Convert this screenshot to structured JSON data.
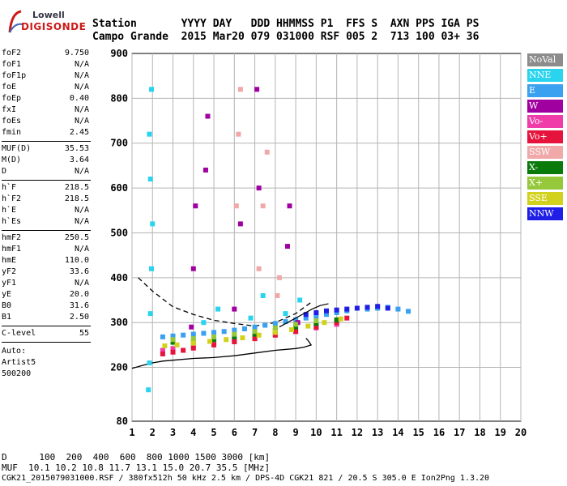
{
  "logo": {
    "line1": "Lowell",
    "line2": "DIGISONDE"
  },
  "header": {
    "row1": "Station       YYYY DAY   DDD HHMMSS P1  FFS S  AXN PPS IGA PS",
    "row2": "Campo Grande  2015 Mar20 079 031000 RSF 005 2  713 100 03+ 36"
  },
  "params": [
    {
      "key": "foF2",
      "value": "9.750"
    },
    {
      "key": "foF1",
      "value": "N/A"
    },
    {
      "key": "foF1p",
      "value": "N/A"
    },
    {
      "key": "foE",
      "value": "N/A"
    },
    {
      "key": "foEp",
      "value": "0.40"
    },
    {
      "key": "fxI",
      "value": "N/A"
    },
    {
      "key": "foEs",
      "value": "N/A"
    },
    {
      "key": "fmin",
      "value": "2.45"
    },
    {
      "key": "MUF(D)",
      "value": "35.53"
    },
    {
      "key": "M(D)",
      "value": "3.64"
    },
    {
      "key": "D",
      "value": "N/A"
    },
    {
      "key": "h`F",
      "value": "218.5"
    },
    {
      "key": "h`F2",
      "value": "218.5"
    },
    {
      "key": "h`E",
      "value": "N/A"
    },
    {
      "key": "h`Es",
      "value": "N/A"
    },
    {
      "key": "hmF2",
      "value": "250.5"
    },
    {
      "key": "hmF1",
      "value": "N/A"
    },
    {
      "key": "hmE",
      "value": "110.0"
    },
    {
      "key": "yF2",
      "value": "33.6"
    },
    {
      "key": "yF1",
      "value": "N/A"
    },
    {
      "key": "yE",
      "value": "20.0"
    },
    {
      "key": "B0",
      "value": "31.6"
    },
    {
      "key": "B1",
      "value": "2.50"
    },
    {
      "key": "C-level",
      "value": "55"
    }
  ],
  "auto": {
    "line1": "Auto:",
    "line2": "Artist5",
    "line3": "500200"
  },
  "footer": {
    "d_row": "D      100  200  400  600  800 1000 1500 3000 [km]",
    "muf_row": "MUF  10.1 10.2 10.8 11.7 13.1 15.0 20.7 35.5 [MHz]",
    "file_row": "CGK21_2015079031000.RSF / 380fx512h 50 kHz 2.5 km / DPS-4D CGK21 821 / 20.5 S 305.0 E Ion2Png 1.3.20"
  },
  "legend": [
    {
      "label": "NoVal",
      "color": "#8c8c8c"
    },
    {
      "label": "NNE",
      "color": "#2ad4ee"
    },
    {
      "label": "E",
      "color": "#3aa0f0"
    },
    {
      "label": "W",
      "color": "#a000a0"
    },
    {
      "label": "Vo-",
      "color": "#f03ca8"
    },
    {
      "label": "Vo+",
      "color": "#e6143c"
    },
    {
      "label": "SSW",
      "color": "#f0a8a8"
    },
    {
      "label": "X-",
      "color": "#0a7a0a"
    },
    {
      "label": "X+",
      "color": "#96c83c"
    },
    {
      "label": "SSE",
      "color": "#d2d21e"
    },
    {
      "label": "NNW",
      "color": "#1e1ee6"
    }
  ],
  "chart_data": {
    "type": "scatter",
    "title": "",
    "xlabel": "",
    "ylabel": "",
    "xlim": [
      1,
      20
    ],
    "ylim": [
      80,
      900
    ],
    "x_ticks": [
      1,
      2,
      3,
      4,
      5,
      6,
      7,
      8,
      9,
      10,
      11,
      12,
      13,
      14,
      15,
      16,
      17,
      18,
      19,
      20
    ],
    "y_ticks": [
      80,
      200,
      300,
      400,
      500,
      600,
      700,
      800,
      900
    ],
    "grid": true,
    "legend_position": "right",
    "series": [
      {
        "name": "NNE",
        "color": "#2ad4ee",
        "x": [
          1.8,
          1.85,
          1.9,
          1.95,
          2.0,
          1.9,
          1.85,
          1.95,
          4.5,
          5.2,
          6.8,
          7.4,
          8.5,
          9.2
        ],
        "y": [
          150,
          210,
          320,
          420,
          520,
          620,
          720,
          820,
          300,
          330,
          310,
          360,
          320,
          350
        ]
      },
      {
        "name": "E",
        "color": "#3aa0f0",
        "x": [
          2.5,
          3.0,
          3.5,
          4.0,
          4.5,
          5.0,
          5.5,
          6.0,
          6.5,
          7.0,
          7.5,
          8.0,
          8.5,
          9.0,
          9.5,
          10.0,
          10.5,
          11.0,
          11.5,
          12.5,
          13.0,
          13.5,
          14.0,
          14.5
        ],
        "y": [
          268,
          270,
          272,
          274,
          276,
          278,
          280,
          283,
          286,
          290,
          294,
          298,
          302,
          306,
          310,
          314,
          318,
          322,
          326,
          330,
          332,
          334,
          330,
          325
        ]
      },
      {
        "name": "W",
        "color": "#a000a0",
        "x": [
          3.9,
          4.0,
          4.1,
          4.6,
          4.7,
          6.0,
          6.3,
          7.1,
          7.2,
          8.6,
          8.7,
          9.1
        ],
        "y": [
          290,
          420,
          560,
          640,
          760,
          330,
          520,
          820,
          600,
          470,
          560,
          300
        ]
      },
      {
        "name": "Vo-",
        "color": "#f03ca8",
        "x": [
          2.5,
          3.0,
          4.0,
          5.0,
          6.0,
          7.0,
          8.0,
          9.0,
          10.0,
          11.0
        ],
        "y": [
          238,
          242,
          248,
          254,
          260,
          266,
          272,
          280,
          288,
          296
        ]
      },
      {
        "name": "Vo+",
        "color": "#e6143c",
        "x": [
          2.5,
          3.0,
          3.5,
          4.0,
          5.0,
          6.0,
          7.0,
          8.0,
          9.0,
          10.0,
          11.0,
          11.5
        ],
        "y": [
          230,
          234,
          238,
          243,
          250,
          257,
          264,
          272,
          280,
          290,
          300,
          310
        ]
      },
      {
        "name": "SSW",
        "color": "#f0a8a8",
        "x": [
          6.1,
          6.2,
          6.3,
          7.2,
          7.4,
          7.6,
          8.1,
          8.2
        ],
        "y": [
          560,
          720,
          820,
          420,
          560,
          680,
          360,
          400
        ]
      },
      {
        "name": "X-",
        "color": "#0a7a0a",
        "x": [
          3.0,
          4.0,
          5.0,
          6.0,
          7.0,
          8.0,
          9.0,
          10.0,
          11.0
        ],
        "y": [
          256,
          258,
          262,
          268,
          274,
          282,
          290,
          298,
          306
        ]
      },
      {
        "name": "X+",
        "color": "#96c83c",
        "x": [
          3.0,
          4.0,
          5.0,
          6.0,
          7.0,
          8.0,
          9.0,
          10.0
        ],
        "y": [
          262,
          264,
          268,
          274,
          280,
          288,
          296,
          304
        ]
      },
      {
        "name": "SSE",
        "color": "#d2d21e",
        "x": [
          2.6,
          3.2,
          4.0,
          4.8,
          5.6,
          6.4,
          7.2,
          8.0,
          8.8,
          9.6,
          10.4,
          11.2
        ],
        "y": [
          248,
          250,
          254,
          258,
          262,
          266,
          272,
          278,
          284,
          292,
          300,
          308
        ]
      },
      {
        "name": "NNW",
        "color": "#1e1ee6",
        "x": [
          9.5,
          10.0,
          10.5,
          11.0,
          11.5,
          12.0,
          12.5,
          13.0,
          13.5
        ],
        "y": [
          318,
          322,
          326,
          328,
          330,
          332,
          334,
          336,
          332
        ]
      }
    ],
    "profile_curve": {
      "x": [
        1.0,
        1.5,
        2.0,
        2.5,
        3.0,
        4.0,
        5.0,
        6.0,
        7.0,
        8.0,
        9.0,
        9.4,
        9.75,
        9.6,
        9.5
      ],
      "y": [
        198,
        204,
        210,
        214,
        216,
        220,
        222,
        226,
        232,
        238,
        242,
        245,
        250,
        260,
        265
      ]
    },
    "ordinary_trace_dashed": {
      "x": [
        1.3,
        2.0,
        3.0,
        4.0,
        5.0,
        6.0,
        7.0,
        8.0,
        9.0,
        9.75
      ],
      "y": [
        400,
        370,
        335,
        318,
        305,
        298,
        292,
        300,
        320,
        345
      ]
    },
    "x_trace_line": {
      "x": [
        8.2,
        8.6,
        9.0,
        9.4,
        9.8,
        10.2,
        10.6
      ],
      "y": [
        290,
        300,
        310,
        320,
        330,
        338,
        342
      ]
    }
  }
}
